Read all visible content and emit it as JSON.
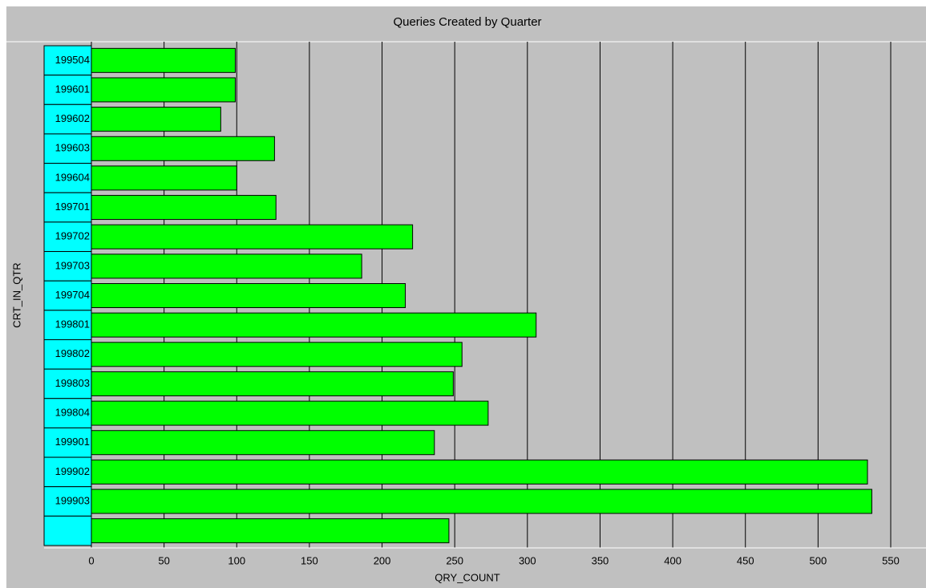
{
  "chart_data": {
    "type": "bar",
    "orientation": "horizontal",
    "title": "Queries Created by Quarter",
    "x_label": "QRY_COUNT",
    "y_label": "CRT_IN_QTR",
    "categories": [
      "199504",
      "199601",
      "199602",
      "199603",
      "199604",
      "199701",
      "199702",
      "199703",
      "199704",
      "199801",
      "199802",
      "199803",
      "199804",
      "199901",
      "199902",
      "199903",
      null
    ],
    "values": [
      99,
      99,
      89,
      126,
      100,
      127,
      221,
      186,
      216,
      306,
      255,
      249,
      273,
      236,
      534,
      537,
      246
    ],
    "color": "#00ff00",
    "label_color": "#00ffff",
    "xlim": [
      0,
      550
    ],
    "xticks": [
      0,
      50,
      100,
      150,
      200,
      250,
      300,
      350,
      400,
      450,
      500,
      550
    ],
    "grid": true
  }
}
